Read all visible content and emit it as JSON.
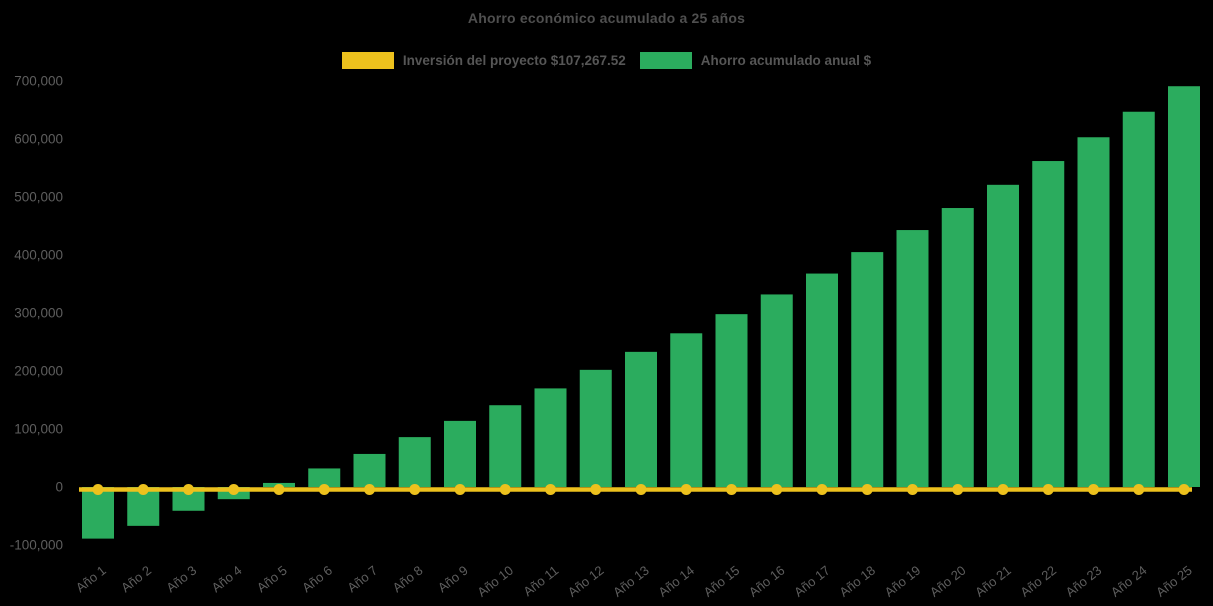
{
  "chart_data": {
    "type": "bar",
    "title": "Ahorro económico acumulado a 25 años",
    "background_color": "#000000",
    "text_color": "#5e5e5e",
    "grid": false,
    "legend_position": "top-center",
    "categories": [
      "Año 1",
      "Año 2",
      "Año 3",
      "Año 4",
      "Año 5",
      "Año 6",
      "Año 7",
      "Año 8",
      "Año 9",
      "Año 10",
      "Año 11",
      "Año 12",
      "Año 13",
      "Año 14",
      "Año 15",
      "Año 16",
      "Año 17",
      "Año 18",
      "Año 19",
      "Año 20",
      "Año 21",
      "Año 22",
      "Año 23",
      "Año 24",
      "Año 25"
    ],
    "series": [
      {
        "name": "Inversión del proyecto $107,267.52",
        "type": "line",
        "color": "#edc11d",
        "marker": "circle",
        "values": [
          0,
          0,
          0,
          0,
          0,
          0,
          0,
          0,
          0,
          0,
          0,
          0,
          0,
          0,
          0,
          0,
          0,
          0,
          0,
          0,
          0,
          0,
          0,
          0,
          0
        ]
      },
      {
        "name": "Ahorro acumulado anual $",
        "type": "bar",
        "color": "#2bac5e",
        "values": [
          -89000,
          -67000,
          -41000,
          -21000,
          7000,
          32000,
          57000,
          86000,
          114000,
          141000,
          170000,
          202000,
          233000,
          265000,
          298000,
          332000,
          368000,
          405000,
          443000,
          481000,
          521000,
          562000,
          603000,
          647000,
          691000
        ]
      }
    ],
    "xlabel": "",
    "ylabel": "",
    "ylim": [
      -100000,
      700000
    ],
    "y_tick_step": 100000,
    "y_tick_labels": [
      "700,000",
      "600,000",
      "500,000",
      "400,000",
      "300,000",
      "200,000",
      "100,000",
      "0",
      "-100,000"
    ]
  }
}
